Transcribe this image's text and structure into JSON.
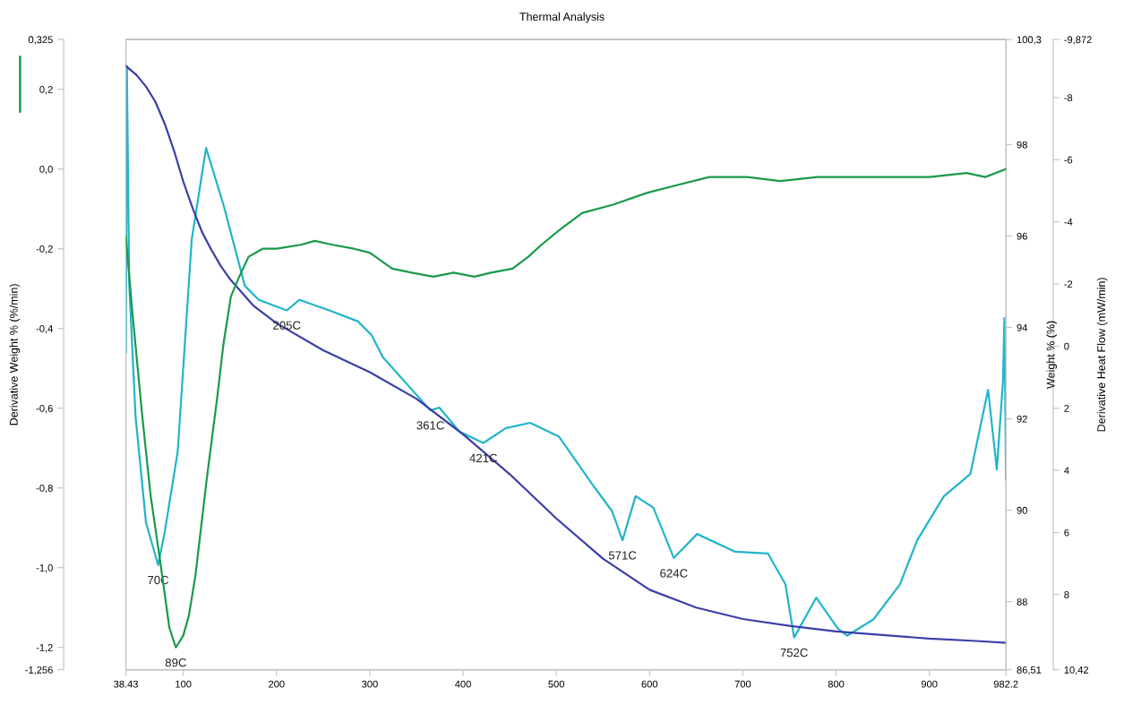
{
  "chart_data": {
    "type": "line",
    "title": "Thermal Analysis",
    "ylabel": "Derivative Weight % (%/min)",
    "y2label": "Weight % (%)",
    "y3label": "Derivative Heat Flow (mW/min)",
    "xlim": [
      38.43,
      982.2
    ],
    "xticks": [
      {
        "value": 38.43,
        "label": "38.43"
      },
      100,
      200,
      300,
      400,
      500,
      600,
      700,
      800,
      900,
      {
        "value": 982.2,
        "label": "982.2"
      }
    ],
    "ylim": [
      -1.256,
      0.325
    ],
    "yticks": [
      {
        "value": -1.256,
        "label": "-1,256"
      },
      {
        "value": -1.2,
        "label": "-1,2"
      },
      {
        "value": -1.0,
        "label": "-1,0"
      },
      {
        "value": -0.8,
        "label": "-0,8"
      },
      {
        "value": -0.6,
        "label": "-0,6"
      },
      {
        "value": -0.4,
        "label": "-0,4"
      },
      {
        "value": -0.2,
        "label": "-0,2"
      },
      {
        "value": 0.0,
        "label": "0,0"
      },
      {
        "value": 0.2,
        "label": "0,2"
      },
      {
        "value": 0.325,
        "label": "0,325"
      }
    ],
    "y2lim": [
      86.51,
      100.3
    ],
    "y2ticks": [
      {
        "value": 86.51,
        "label": "86,51"
      },
      88,
      90,
      92,
      94,
      96,
      98,
      {
        "value": 100.3,
        "label": "100,3"
      }
    ],
    "y3lim": [
      10.42,
      -9.872
    ],
    "y3ticks": [
      {
        "value": -9.872,
        "label": "-9,872"
      },
      -8,
      -6,
      -4,
      -2,
      0,
      2,
      4,
      6,
      8,
      {
        "value": 10.42,
        "label": "10,42"
      }
    ],
    "grid": false,
    "legend": false,
    "marker": "none",
    "line_style": "solid",
    "series": [
      {
        "color": "#1a9a4a",
        "axis": "y",
        "x": [
          38.43,
          45,
          56,
          65,
          75,
          85,
          92,
          100,
          106,
          113,
          120,
          125,
          136,
          143,
          151,
          160,
          170,
          185,
          200,
          226,
          241,
          260,
          283,
          300,
          324,
          345,
          368,
          390,
          412,
          430,
          453,
          470,
          484,
          505,
          528,
          560,
          597,
          630,
          664,
          705,
          740,
          780,
          820,
          860,
          900,
          940,
          960,
          982.2
        ],
        "values": [
          -0.17,
          -0.35,
          -0.62,
          -0.82,
          -0.98,
          -1.15,
          -1.2,
          -1.17,
          -1.12,
          -1.02,
          -0.88,
          -0.78,
          -0.58,
          -0.44,
          -0.32,
          -0.27,
          -0.22,
          -0.2,
          -0.2,
          -0.19,
          -0.18,
          -0.19,
          -0.2,
          -0.21,
          -0.25,
          -0.26,
          -0.27,
          -0.26,
          -0.27,
          -0.26,
          -0.25,
          -0.22,
          -0.19,
          -0.15,
          -0.11,
          -0.09,
          -0.06,
          -0.04,
          -0.02,
          -0.02,
          -0.03,
          -0.02,
          -0.02,
          -0.02,
          -0.02,
          -0.01,
          -0.02,
          0.0
        ]
      },
      {
        "color": "#3b3fa8",
        "axis": "y2",
        "x": [
          38.43,
          50,
          60,
          70,
          80,
          90,
          100,
          110,
          120,
          130,
          140,
          150,
          175,
          200,
          250,
          300,
          350,
          400,
          450,
          500,
          550,
          600,
          650,
          700,
          750,
          800,
          850,
          900,
          950,
          982.2
        ],
        "values": [
          99.72,
          99.52,
          99.27,
          98.94,
          98.46,
          97.87,
          97.19,
          96.61,
          96.09,
          95.7,
          95.35,
          95.06,
          94.48,
          94.09,
          93.5,
          93.02,
          92.44,
          91.66,
          90.79,
          89.82,
          88.94,
          88.26,
          87.87,
          87.62,
          87.47,
          87.35,
          87.27,
          87.19,
          87.14,
          87.1
        ]
      },
      {
        "color": "#22b5c9",
        "axis": "y3",
        "x": [
          38.43,
          39.5,
          42,
          48.8,
          60,
          73,
          80,
          94,
          109,
          124.4,
          143,
          166,
          181,
          211,
          224.5,
          256.6,
          287,
          302,
          314,
          365,
          374.6,
          396,
          421.8,
          446,
          472,
          503,
          540.8,
          559.7,
          571,
          585,
          604,
          626,
          651,
          692,
          727,
          745.7,
          755,
          778.7,
          802,
          812,
          840,
          868.5,
          887,
          915.7,
          944,
          963,
          972.4,
          979,
          980.5,
          982.2
        ],
        "values": [
          0.2,
          -9.0,
          -2.0,
          2.27,
          5.68,
          7.05,
          6.0,
          3.4,
          -3.42,
          -6.38,
          -4.56,
          -1.94,
          -1.49,
          -1.15,
          -1.49,
          -1.15,
          -0.8,
          -0.35,
          0.36,
          2.07,
          1.98,
          2.75,
          3.12,
          2.64,
          2.47,
          2.92,
          4.54,
          5.31,
          6.25,
          4.83,
          5.2,
          6.82,
          6.05,
          6.62,
          6.68,
          7.67,
          9.38,
          8.1,
          9.1,
          9.32,
          8.8,
          7.67,
          6.25,
          4.83,
          4.12,
          1.41,
          3.97,
          1.13,
          -0.9,
          4.3
        ]
      }
    ],
    "annotations": [
      {
        "text": "70C",
        "x": 73,
        "y": -0.993
      },
      {
        "text": "89C",
        "x": 92,
        "y": -1.2
      },
      {
        "text": "205C",
        "x": 211,
        "y": -0.354
      },
      {
        "text": "361C",
        "x": 365,
        "y": -0.605
      },
      {
        "text": "421C",
        "x": 421.8,
        "y": -0.687
      },
      {
        "text": "571C",
        "x": 571,
        "y": -0.931
      },
      {
        "text": "624C",
        "x": 626,
        "y": -0.976
      },
      {
        "text": "752C",
        "x": 755,
        "y": -1.175
      }
    ]
  }
}
